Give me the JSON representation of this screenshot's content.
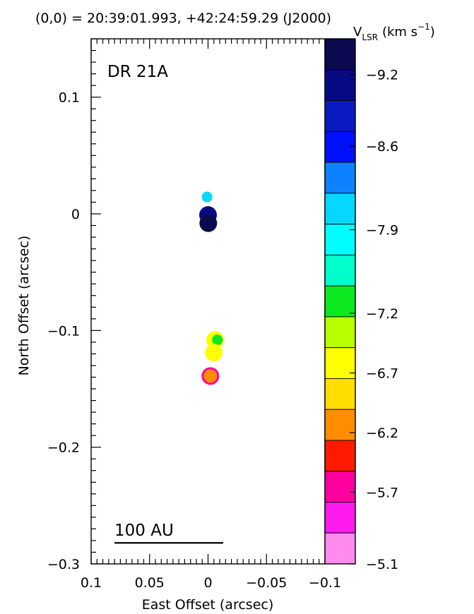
{
  "chart_data": {
    "type": "scatter",
    "title": "(0,0) = 20:39:01.993, +42:24:59.29 (J2000)",
    "panel_label": "DR 21A",
    "xlabel": "East Offset (arcsec)",
    "ylabel": "North Offset (arcsec)",
    "xlim": [
      0.1,
      -0.1
    ],
    "ylim": [
      -0.3,
      0.15
    ],
    "x_ticks": [
      {
        "value": 0.1,
        "label": "0.1"
      },
      {
        "value": 0.05,
        "label": "0.05"
      },
      {
        "value": 0,
        "label": "0"
      },
      {
        "value": -0.05,
        "label": "−0.05"
      },
      {
        "value": -0.1,
        "label": "−0.1"
      }
    ],
    "y_ticks": [
      {
        "value": 0.1,
        "label": "0.1"
      },
      {
        "value": 0,
        "label": "0"
      },
      {
        "value": -0.1,
        "label": "−0.1"
      },
      {
        "value": -0.2,
        "label": "−0.2"
      },
      {
        "value": -0.3,
        "label": "−0.3"
      }
    ],
    "scale_bar": {
      "label": "100 AU",
      "x_start": 0.08,
      "x_end": -0.013,
      "y": -0.282
    },
    "colorbar": {
      "label_main": "V",
      "label_sub": "LSR",
      "label_unit": "(km s",
      "label_exp": "−1",
      "label_close": ")",
      "vmin": -5.1,
      "vmax": -9.5,
      "colors": [
        "#0b0a4e",
        "#080a85",
        "#0b1bc2",
        "#0010ff",
        "#0d82ff",
        "#06d7ff",
        "#00ffff",
        "#00ffcc",
        "#0ce81f",
        "#b8ff00",
        "#ffff00",
        "#ffdd00",
        "#ff8d00",
        "#ff1a00",
        "#ff00a0",
        "#ff19ee",
        "#ff8bef"
      ],
      "tick_labels": [
        {
          "value": -9.2,
          "label": "−9.2"
        },
        {
          "value": -8.6,
          "label": "−8.6"
        },
        {
          "value": -7.9,
          "label": "−7.9"
        },
        {
          "value": -7.2,
          "label": "−7.2"
        },
        {
          "value": -6.7,
          "label": "−6.7"
        },
        {
          "value": -6.2,
          "label": "−6.2"
        },
        {
          "value": -5.7,
          "label": "−5.7"
        },
        {
          "value": -5.1,
          "label": "−5.1"
        }
      ]
    },
    "points": [
      {
        "x": 0.0008,
        "y": 0.0145,
        "size": "small",
        "color": "#06d7ff"
      },
      {
        "x": 0.0,
        "y": -0.001,
        "size": "large",
        "color": "#080a85"
      },
      {
        "x": -0.0002,
        "y": -0.008,
        "size": "large",
        "color": "#0b0a4e"
      },
      {
        "x": -0.006,
        "y": -0.108,
        "size": "large",
        "color": "#ffff00"
      },
      {
        "x": -0.008,
        "y": -0.108,
        "size": "small",
        "color": "#0ce81f"
      },
      {
        "x": -0.005,
        "y": -0.119,
        "size": "large",
        "color": "#ffff00"
      },
      {
        "x": -0.002,
        "y": -0.139,
        "size": "large",
        "color": "#ff00a0"
      },
      {
        "x": -0.002,
        "y": -0.139,
        "size": "medium",
        "color": "#ff8d00"
      }
    ]
  }
}
